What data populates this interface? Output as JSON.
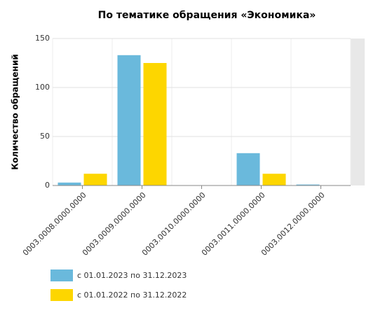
{
  "chart_data": {
    "type": "bar",
    "title": "По тематике обращения «Экономика»",
    "y_label": "Количество обращений",
    "categories": [
      "0003.0008.0000.0000",
      "0003.0009.0000.0000",
      "0003.0010.0000.0000",
      "0003.0011.0000.0000",
      "0003.0012.0000.0000"
    ],
    "series": [
      {
        "name": "с 01.01.2023 по 31.12.2023",
        "color": "#6ab9dc",
        "values": [
          3,
          133,
          0,
          33,
          1
        ]
      },
      {
        "name": "с 01.01.2022 по 31.12.2022",
        "color": "#fdd600",
        "values": [
          12,
          125,
          0,
          12,
          0
        ]
      }
    ],
    "ylim": [
      0,
      150
    ],
    "yticks": [
      0,
      50,
      100,
      150
    ],
    "grid": true
  }
}
